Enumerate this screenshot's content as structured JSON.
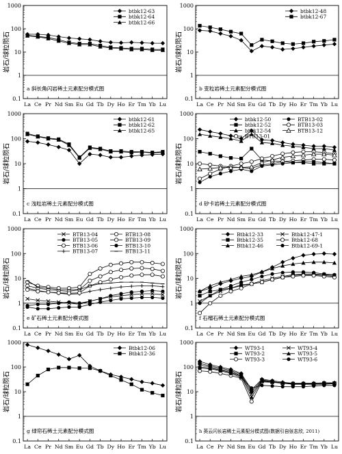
{
  "figure": {
    "ylabel": "岩石/球粒陨石",
    "x_tick_labels": [
      "La",
      "Ce",
      "Pr",
      "Nd",
      "Sm",
      "Eu",
      "Gd",
      "Tb",
      "Dy",
      "Ho",
      "Er",
      "Tm",
      "Yb",
      "Lu"
    ]
  },
  "chart_data": [
    {
      "type": "line",
      "caption": "a 斜长角闪岩稀土元素配分模式图",
      "ylabel": "岩石/球粒陨石",
      "yscale": "log",
      "ylim": [
        0.1,
        1000
      ],
      "y_tick_labels": [
        "0.1",
        "1",
        "10",
        "100",
        "1000"
      ],
      "legend_position": "top-right",
      "categories": [
        "La",
        "Ce",
        "Pr",
        "Nd",
        "Sm",
        "Eu",
        "Gd",
        "Tb",
        "Dy",
        "Ho",
        "Er",
        "Tm",
        "Yb",
        "Lu"
      ],
      "series": [
        {
          "name": "btbk12-63",
          "marker": "diamond",
          "values": [
            58,
            58,
            54,
            46,
            40,
            37,
            34,
            29,
            26,
            25,
            26,
            25,
            24,
            24
          ]
        },
        {
          "name": "btbk12-64",
          "marker": "square",
          "values": [
            52,
            47,
            42,
            34,
            26,
            23,
            23,
            19,
            16,
            15,
            14,
            14,
            13,
            13
          ]
        },
        {
          "name": "btbk12-66",
          "marker": "triangle",
          "values": [
            50,
            45,
            38,
            30,
            24,
            21,
            21,
            17,
            15,
            14,
            13,
            13,
            12,
            12
          ]
        }
      ]
    },
    {
      "type": "line",
      "caption": "b 变粒岩稀土元素配分模式图",
      "ylabel": "岩石/球粒陨石",
      "yscale": "log",
      "ylim": [
        0.1,
        1000
      ],
      "y_tick_labels": [
        "0.1",
        "1",
        "10",
        "100",
        "1000"
      ],
      "legend_position": "top-right",
      "categories": [
        "La",
        "Ce",
        "Pr",
        "Nd",
        "Sm",
        "Eu",
        "Gd",
        "Tb",
        "Dy",
        "Ho",
        "Er",
        "Tm",
        "Yb",
        "Lu"
      ],
      "series": [
        {
          "name": "btbk12-48",
          "marker": "diamond",
          "values": [
            85,
            80,
            62,
            48,
            32,
            11,
            18,
            16,
            13,
            14,
            16,
            18,
            20,
            22
          ]
        },
        {
          "name": "btbk12-67",
          "marker": "square",
          "values": [
            135,
            115,
            95,
            75,
            62,
            20,
            34,
            29,
            24,
            22,
            24,
            28,
            30,
            34
          ]
        }
      ]
    },
    {
      "type": "line",
      "caption": "c 浅粒岩稀土元素配分模式图",
      "ylabel": "岩石/球粒陨石",
      "yscale": "log",
      "ylim": [
        0.1,
        1000
      ],
      "y_tick_labels": [
        "0.1",
        "1",
        "10",
        "100",
        "1000"
      ],
      "legend_position": "top-right",
      "categories": [
        "La",
        "Ce",
        "Pr",
        "Nd",
        "Sm",
        "Eu",
        "Gd",
        "Tb",
        "Dy",
        "Ho",
        "Er",
        "Tm",
        "Yb",
        "Lu"
      ],
      "series": [
        {
          "name": "btbk12-61",
          "marker": "diamond",
          "values": [
            78,
            70,
            58,
            46,
            35,
            10,
            24,
            22,
            18,
            18,
            20,
            22,
            23,
            24
          ]
        },
        {
          "name": "btbk12-62",
          "marker": "square",
          "values": [
            160,
            125,
            105,
            95,
            60,
            18,
            45,
            40,
            32,
            32,
            30,
            30,
            28,
            30
          ]
        },
        {
          "name": "btbk12-65",
          "marker": "triangle",
          "values": [
            150,
            120,
            100,
            90,
            55,
            17,
            42,
            38,
            30,
            30,
            28,
            29,
            27,
            28
          ]
        }
      ]
    },
    {
      "type": "line",
      "caption": "d 矽卡岩稀土元素配分模式图",
      "ylabel": "岩石/球粒陨石",
      "yscale": "log",
      "ylim": [
        0.1,
        1000
      ],
      "y_tick_labels": [
        "0.1",
        "1",
        "10",
        "100",
        "1000"
      ],
      "legend_position": "top-right",
      "categories": [
        "La",
        "Ce",
        "Pr",
        "Nd",
        "Sm",
        "Eu",
        "Gd",
        "Tb",
        "Dy",
        "Ho",
        "Er",
        "Tm",
        "Yb",
        "Lu"
      ],
      "series": [
        {
          "name": "btbk12-50",
          "marker": "diamond",
          "values": [
            230,
            190,
            160,
            130,
            100,
            210,
            90,
            85,
            70,
            60,
            55,
            50,
            50,
            45
          ]
        },
        {
          "name": "btbk12-52",
          "marker": "square",
          "values": [
            30,
            25,
            20,
            17,
            16,
            40,
            14,
            13,
            12,
            11,
            11,
            10,
            10,
            10
          ]
        },
        {
          "name": "btbk12-54",
          "marker": "triangle",
          "values": [
            150,
            130,
            115,
            100,
            80,
            150,
            70,
            65,
            55,
            50,
            45,
            40,
            40,
            35
          ]
        },
        {
          "name": "BTB13-01",
          "marker": "open-circle",
          "values": [
            10,
            9,
            8,
            7.5,
            7,
            6.5,
            9,
            10,
            12,
            13,
            14,
            15,
            15,
            14
          ]
        },
        {
          "name": "BTB13-02",
          "marker": "filled-circle",
          "values": [
            1.8,
            3,
            4,
            5,
            6,
            5,
            8,
            9,
            10,
            11,
            12,
            12,
            11,
            10
          ]
        },
        {
          "name": "BTB13-03",
          "marker": "open-circle",
          "values": [
            2.5,
            4,
            6,
            8,
            10,
            12,
            16,
            20,
            25,
            28,
            30,
            30,
            28,
            25
          ]
        },
        {
          "name": "BTB13-12",
          "marker": "open-triangle",
          "values": [
            6,
            6.5,
            7,
            7,
            7,
            7.5,
            11,
            14,
            18,
            20,
            22,
            24,
            24,
            22
          ]
        }
      ]
    },
    {
      "type": "line",
      "caption": "e 矿石稀土元素配分模式图",
      "ylabel": "岩石/球粒陨石",
      "yscale": "log",
      "ylim": [
        0.1,
        1000
      ],
      "y_tick_labels": [
        "0.1",
        "1",
        "10",
        "100",
        "1000"
      ],
      "legend_position": "top-right",
      "categories": [
        "La",
        "Ce",
        "Pr",
        "Nd",
        "Sm",
        "Eu",
        "Gd",
        "Tb",
        "Dy",
        "Ho",
        "Er",
        "Tm",
        "Yb",
        "Lu"
      ],
      "series": [
        {
          "name": "BTB13-04",
          "marker": "x",
          "values": [
            1.5,
            1.3,
            1.2,
            1.1,
            1.0,
            0.9,
            1.2,
            1.5,
            1.8,
            2.0,
            2.2,
            2.4,
            2.4,
            2.2
          ]
        },
        {
          "name": "BTB13-05",
          "marker": "filled-circle",
          "values": [
            0.7,
            0.6,
            0.6,
            0.65,
            0.7,
            0.7,
            0.9,
            1.1,
            1.3,
            1.5,
            1.6,
            1.7,
            1.7,
            1.6
          ]
        },
        {
          "name": "BTB13-06",
          "marker": "open-circle",
          "values": [
            5,
            4,
            3.5,
            3.2,
            3,
            3.5,
            8,
            12,
            18,
            22,
            25,
            26,
            24,
            20
          ]
        },
        {
          "name": "BTB13-07",
          "marker": "plus",
          "values": [
            4,
            3.2,
            2.8,
            2.5,
            2.3,
            2.4,
            3,
            3.5,
            4,
            4.5,
            4.8,
            5,
            5,
            4.6
          ]
        },
        {
          "name": "BTB13-08",
          "marker": "open-circle",
          "values": [
            3.5,
            3,
            2.8,
            2.6,
            2.5,
            2.6,
            5,
            7,
            9,
            11,
            13,
            14,
            14,
            12
          ]
        },
        {
          "name": "BTB13-09",
          "marker": "open-circle",
          "values": [
            7,
            5,
            4.5,
            4,
            4,
            4.5,
            15,
            25,
            35,
            40,
            45,
            45,
            42,
            38
          ]
        },
        {
          "name": "BTB13-10",
          "marker": "filled-circle",
          "values": [
            0.8,
            0.9,
            0.9,
            1.0,
            1.1,
            1.0,
            1.2,
            1.5,
            2,
            2.4,
            2.8,
            3,
            3.2,
            3
          ]
        },
        {
          "name": "BTB13-11",
          "marker": "dash",
          "values": [
            8,
            4.5,
            4,
            3.5,
            3.5,
            3.5,
            5,
            6,
            6.5,
            7,
            7,
            7,
            6.5,
            6
          ]
        }
      ]
    },
    {
      "type": "line",
      "caption": "f 石榴石稀土元素配分模式图",
      "ylabel": "岩石/球粒陨石",
      "yscale": "log",
      "ylim": [
        0.1,
        1000
      ],
      "y_tick_labels": [
        "0.1",
        "1",
        "10",
        "100",
        "1000"
      ],
      "legend_position": "top-left",
      "categories": [
        "La",
        "Ce",
        "Pr",
        "Nd",
        "Sm",
        "Eu",
        "Gd",
        "Tb",
        "Dy",
        "Ho",
        "Er",
        "Tm",
        "Yb",
        "Lu"
      ],
      "series": [
        {
          "name": "Btbk12-33",
          "marker": "diamond",
          "values": [
            3,
            4,
            6,
            8,
            10,
            12,
            18,
            28,
            45,
            65,
            85,
            95,
            100,
            95
          ]
        },
        {
          "name": "Btbk12-35",
          "marker": "square",
          "values": [
            2,
            3,
            3.5,
            4,
            5,
            6,
            7,
            9,
            11,
            13,
            14,
            14,
            13,
            12
          ]
        },
        {
          "name": "Btbk12-46",
          "marker": "triangle",
          "values": [
            3,
            5,
            7,
            9,
            12,
            14,
            18,
            25,
            32,
            38,
            42,
            45,
            45,
            42
          ]
        },
        {
          "name": "Btbk12-47-1",
          "marker": "x",
          "values": [
            1.2,
            2,
            3,
            4,
            5.5,
            6,
            8,
            10,
            12,
            14,
            15,
            15,
            14,
            13
          ]
        },
        {
          "name": "Btbk12-68",
          "marker": "open-circle",
          "values": [
            0.4,
            1,
            2,
            3,
            4,
            6,
            7,
            9,
            11,
            12,
            13,
            13,
            12,
            11
          ]
        },
        {
          "name": "Btbk12-69-1",
          "marker": "filled-circle",
          "values": [
            1,
            2,
            3.5,
            5,
            7,
            9,
            12,
            15,
            17,
            18,
            18,
            17,
            15,
            14
          ]
        }
      ]
    },
    {
      "type": "line",
      "caption": "g 绿帘石稀土元素配分模式图",
      "ylabel": "岩石/球粒陨石",
      "yscale": "log",
      "ylim": [
        0.1,
        1000
      ],
      "y_tick_labels": [
        "0.1",
        "1",
        "10",
        "100",
        "1000"
      ],
      "legend_position": "top-right",
      "categories": [
        "La",
        "Ce",
        "Pr",
        "Nd",
        "Sm",
        "Eu",
        "Gd",
        "Tb",
        "Dy",
        "Ho",
        "Er",
        "Tm",
        "Yb",
        "Lu"
      ],
      "series": [
        {
          "name": "Btbk12-06",
          "marker": "diamond",
          "values": [
            800,
            600,
            450,
            320,
            210,
            300,
            110,
            70,
            50,
            40,
            32,
            25,
            22,
            18
          ]
        },
        {
          "name": "Btbk12-36",
          "marker": "square",
          "values": [
            20,
            45,
            80,
            95,
            95,
            90,
            90,
            70,
            45,
            30,
            20,
            12,
            9,
            7
          ]
        }
      ]
    },
    {
      "type": "line",
      "caption": "h 英云闪长岩稀土元素配分模式图(数据引自张志欣, 2011)",
      "ylabel": "岩石/球粒陨石",
      "yscale": "log",
      "ylim": [
        0.1,
        1000
      ],
      "y_tick_labels": [
        "0.1",
        "1",
        "10",
        "100",
        "1000"
      ],
      "legend_position": "top-right",
      "categories": [
        "La",
        "Ce",
        "Pr",
        "Nd",
        "Sm",
        "Eu",
        "Gd",
        "Tb",
        "Dy",
        "Ho",
        "Er",
        "Tm",
        "Yb",
        "Lu"
      ],
      "series": [
        {
          "name": "WT93-1",
          "marker": "diamond",
          "values": [
            170,
            125,
            100,
            80,
            55,
            12,
            32,
            28,
            24,
            22,
            22,
            22,
            23,
            23
          ]
        },
        {
          "name": "WT93-2",
          "marker": "square",
          "values": [
            140,
            110,
            90,
            72,
            50,
            10,
            30,
            26,
            22,
            21,
            21,
            21,
            22,
            22
          ]
        },
        {
          "name": "WT93-3",
          "marker": "open-circle",
          "values": [
            70,
            65,
            55,
            45,
            35,
            4,
            25,
            24,
            22,
            20,
            20,
            20,
            20,
            21
          ]
        },
        {
          "name": "WT93-4",
          "marker": "x",
          "values": [
            120,
            100,
            80,
            65,
            45,
            8,
            28,
            25,
            22,
            21,
            21,
            21,
            22,
            22
          ]
        },
        {
          "name": "WT93-5",
          "marker": "triangle",
          "values": [
            100,
            90,
            75,
            60,
            42,
            6,
            27,
            25,
            23,
            21,
            21,
            21,
            22,
            22
          ]
        },
        {
          "name": "WT93-6",
          "marker": "filled-circle",
          "values": [
            90,
            85,
            70,
            55,
            38,
            14,
            18,
            17,
            16,
            16,
            16,
            17,
            18,
            18
          ]
        }
      ]
    }
  ]
}
